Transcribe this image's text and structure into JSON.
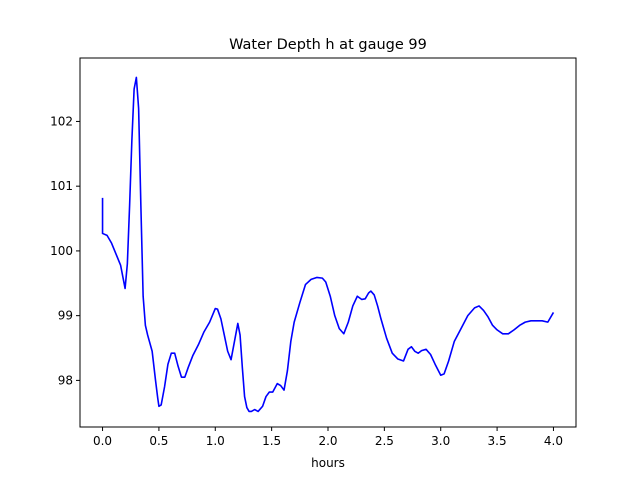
{
  "chart_data": {
    "type": "line",
    "title": "Water Depth h at gauge 99",
    "xlabel": "hours",
    "ylabel": "",
    "xlim": [
      -0.2,
      4.2
    ],
    "ylim": [
      97.28,
      102.98
    ],
    "xticks": [
      0.0,
      0.5,
      1.0,
      1.5,
      2.0,
      2.5,
      3.0,
      3.5,
      4.0
    ],
    "xtick_labels": [
      "0.0",
      "0.5",
      "1.0",
      "1.5",
      "2.0",
      "2.5",
      "3.0",
      "3.5",
      "4.0"
    ],
    "yticks": [
      98,
      99,
      100,
      101,
      102
    ],
    "ytick_labels": [
      "98",
      "99",
      "100",
      "101",
      "102"
    ],
    "grid": false,
    "line_color": "#0000ff",
    "series": [
      {
        "name": "",
        "x": [
          0.0,
          0.0,
          0.04,
          0.08,
          0.12,
          0.16,
          0.2,
          0.22,
          0.24,
          0.26,
          0.28,
          0.3,
          0.32,
          0.34,
          0.36,
          0.38,
          0.4,
          0.44,
          0.47,
          0.49,
          0.5,
          0.52,
          0.55,
          0.58,
          0.61,
          0.64,
          0.67,
          0.7,
          0.73,
          0.76,
          0.8,
          0.85,
          0.9,
          0.95,
          1.0,
          1.02,
          1.05,
          1.08,
          1.11,
          1.14,
          1.17,
          1.2,
          1.22,
          1.24,
          1.26,
          1.28,
          1.3,
          1.32,
          1.35,
          1.38,
          1.42,
          1.45,
          1.48,
          1.51,
          1.55,
          1.58,
          1.61,
          1.64,
          1.67,
          1.7,
          1.75,
          1.8,
          1.85,
          1.9,
          1.95,
          1.98,
          2.02,
          2.06,
          2.1,
          2.14,
          2.18,
          2.22,
          2.26,
          2.3,
          2.33,
          2.36,
          2.38,
          2.41,
          2.44,
          2.47,
          2.52,
          2.57,
          2.62,
          2.67,
          2.71,
          2.74,
          2.77,
          2.8,
          2.83,
          2.87,
          2.91,
          2.95,
          3.0,
          3.03,
          3.07,
          3.12,
          3.18,
          3.24,
          3.3,
          3.34,
          3.38,
          3.42,
          3.46,
          3.5,
          3.55,
          3.6,
          3.65,
          3.7,
          3.75,
          3.8,
          3.9,
          3.95,
          4.0
        ],
        "values": [
          100.82,
          100.27,
          100.24,
          100.12,
          99.95,
          99.78,
          99.42,
          99.8,
          100.7,
          101.7,
          102.5,
          102.68,
          102.2,
          100.7,
          99.3,
          98.85,
          98.7,
          98.45,
          98.0,
          97.72,
          97.6,
          97.62,
          97.9,
          98.25,
          98.42,
          98.42,
          98.22,
          98.05,
          98.05,
          98.2,
          98.38,
          98.55,
          98.75,
          98.9,
          99.11,
          99.1,
          98.95,
          98.7,
          98.45,
          98.32,
          98.6,
          98.88,
          98.7,
          98.2,
          97.75,
          97.58,
          97.52,
          97.52,
          97.55,
          97.52,
          97.6,
          97.75,
          97.82,
          97.82,
          97.95,
          97.92,
          97.85,
          98.15,
          98.6,
          98.9,
          99.2,
          99.48,
          99.56,
          99.59,
          99.58,
          99.52,
          99.3,
          99.0,
          98.8,
          98.72,
          98.9,
          99.15,
          99.3,
          99.25,
          99.26,
          99.35,
          99.38,
          99.32,
          99.15,
          98.95,
          98.65,
          98.42,
          98.33,
          98.3,
          98.48,
          98.52,
          98.45,
          98.42,
          98.46,
          98.48,
          98.4,
          98.25,
          98.08,
          98.1,
          98.3,
          98.6,
          98.8,
          99.0,
          99.12,
          99.15,
          99.08,
          98.98,
          98.85,
          98.78,
          98.72,
          98.72,
          98.78,
          98.85,
          98.9,
          98.92,
          98.92,
          98.9,
          99.05
        ]
      }
    ]
  }
}
